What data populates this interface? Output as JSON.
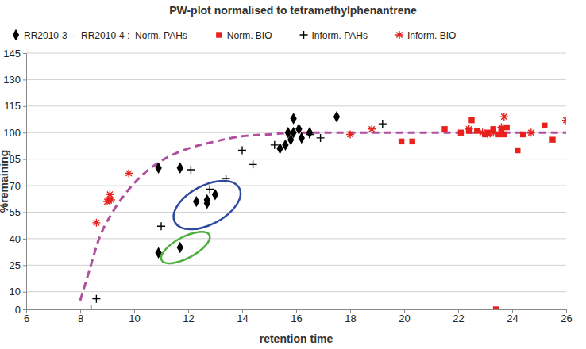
{
  "chart_data": {
    "type": "scatter",
    "title": "PW-plot normalised to tetramethylphenantrene",
    "x_label": "retention time",
    "y_label": "%remaining",
    "xlim": [
      6,
      26
    ],
    "xticks": [
      6,
      8,
      10,
      12,
      14,
      16,
      18,
      20,
      22,
      24,
      26
    ],
    "ylim": [
      0,
      145
    ],
    "yticks": [
      0,
      10,
      25,
      40,
      55,
      70,
      85,
      100,
      115,
      130,
      145
    ],
    "grid": true,
    "legend": "top",
    "series": [
      {
        "name": "RR2010-3  -  RR2010-4 :  Norm. PAHs",
        "color": "#000000",
        "marker": "diamond",
        "x": [
          10.9,
          11.7,
          12.3,
          12.7,
          12.7,
          13.0,
          10.9,
          11.7,
          15.4,
          15.6,
          15.7,
          15.8,
          15.9,
          15.9,
          16.1,
          16.2,
          16.5,
          17.5
        ],
        "values": [
          80,
          80,
          61,
          62,
          60,
          65,
          32,
          35,
          91,
          93,
          100,
          96,
          108,
          100,
          102,
          97,
          100,
          109
        ]
      },
      {
        "name": "Norm. BIO",
        "color": "#e8211d",
        "marker": "square",
        "x": [
          19.9,
          20.3,
          21.5,
          22.1,
          22.4,
          22.5,
          22.7,
          23.0,
          23.1,
          23.3,
          23.5,
          23.6,
          23.7,
          23.8,
          24.2,
          24.4,
          25.2,
          25.5,
          23.4
        ],
        "values": [
          95,
          95,
          102,
          100,
          101,
          107,
          101,
          99,
          100,
          102,
          99,
          102,
          99,
          103,
          90,
          99,
          104,
          96,
          0
        ]
      },
      {
        "name": "Inform. PAHs",
        "color": "#000000",
        "marker": "plus",
        "x": [
          8.4,
          8.6,
          11.0,
          12.1,
          12.8,
          13.4,
          14.0,
          14.4,
          15.2,
          16.5,
          16.9,
          19.2
        ],
        "values": [
          0,
          6,
          47,
          79,
          68,
          74,
          90,
          82,
          93,
          99,
          97,
          105
        ]
      },
      {
        "name": "Inform. BIO",
        "color": "#e8211d",
        "marker": "asterisk",
        "x": [
          8.6,
          9.0,
          9.1,
          9.05,
          9.15,
          9.8,
          18.0,
          18.8,
          22.4,
          22.9,
          23.1,
          23.3,
          23.6,
          23.7,
          24.7,
          26.0
        ],
        "values": [
          49,
          61,
          65,
          62,
          62,
          77,
          99,
          102,
          102,
          100,
          99,
          100,
          103,
          109,
          100,
          107
        ]
      }
    ],
    "curve": {
      "type": "line",
      "color": "#b04f9e",
      "line_style": "dashed",
      "x": [
        8.0,
        8.3,
        8.7,
        9.2,
        9.7,
        10.3,
        11.0,
        12.0,
        13.0,
        14.0,
        15.0,
        16.0,
        18.0,
        20.0,
        26.0
      ],
      "values": [
        5,
        20,
        40,
        55,
        66,
        76,
        84,
        91,
        95,
        98,
        99,
        100,
        100,
        100,
        100
      ]
    },
    "ellipses": [
      {
        "x": 12.7,
        "y": 59,
        "x_radius": 1.35,
        "y_radius": 11,
        "color": "#2e4a9e"
      },
      {
        "x": 11.9,
        "y": 35,
        "x_radius": 1.0,
        "y_radius": 6,
        "color": "#4caf3c"
      }
    ]
  }
}
